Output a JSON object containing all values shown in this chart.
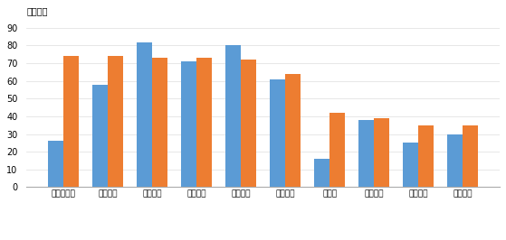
{
  "categories": [
    "比亚迪股份",
    "奇瑞汽车",
    "长安汽车",
    "吉利控股",
    "长城汽车",
    "一汽大众",
    "特斯拉",
    "上汽大众",
    "一汽丰田",
    "上汽集团"
  ],
  "values_2021": [
    26,
    58,
    82,
    71,
    80,
    61,
    16,
    38,
    25,
    30
  ],
  "values_2022": [
    74,
    74,
    73,
    73,
    72,
    64,
    42,
    39,
    35,
    35
  ],
  "color_2021": "#5B9BD5",
  "color_2022": "#ED7D31",
  "ylabel": "（万辆）",
  "yticks": [
    0,
    10,
    20,
    30,
    40,
    50,
    60,
    70,
    80,
    90
  ],
  "background_color": "#ffffff",
  "bar_width": 0.35,
  "ylim": [
    0,
    95
  ]
}
